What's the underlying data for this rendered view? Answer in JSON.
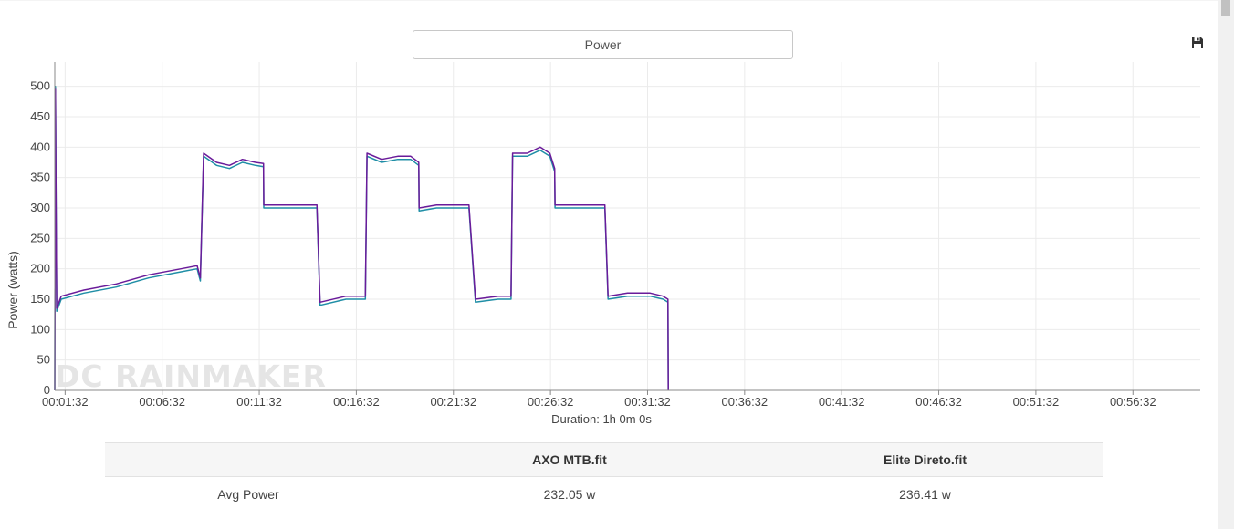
{
  "metric_selector": {
    "value": "Power"
  },
  "icons": {
    "save": "floppy-disk-icon"
  },
  "watermark": "DC RAINMAKER",
  "colors": {
    "series_a": "#1f8ea6",
    "series_b": "#6a1b9a",
    "grid": "#ebebeb",
    "axis": "#888888"
  },
  "chart_data": {
    "type": "line",
    "title": "",
    "xlabel": "Duration: 1h 0m 0s",
    "ylabel": "Power (watts)",
    "ylim": [
      0,
      540
    ],
    "xlim_seconds": [
      60,
      3600
    ],
    "y_ticks": [
      0,
      50,
      100,
      150,
      200,
      250,
      300,
      350,
      400,
      450,
      500
    ],
    "x_ticks": [
      {
        "t": 92,
        "label": "00:01:32"
      },
      {
        "t": 392,
        "label": "00:06:32"
      },
      {
        "t": 692,
        "label": "00:11:32"
      },
      {
        "t": 992,
        "label": "00:16:32"
      },
      {
        "t": 1292,
        "label": "00:21:32"
      },
      {
        "t": 1592,
        "label": "00:26:32"
      },
      {
        "t": 1892,
        "label": "00:31:32"
      },
      {
        "t": 2192,
        "label": "00:36:32"
      },
      {
        "t": 2492,
        "label": "00:41:32"
      },
      {
        "t": 2792,
        "label": "00:46:32"
      },
      {
        "t": 3092,
        "label": "00:51:32"
      },
      {
        "t": 3392,
        "label": "00:56:32"
      }
    ],
    "grid": true,
    "legend": "none",
    "series": [
      {
        "name": "AXO MTB.fit",
        "points": [
          [
            60,
            0
          ],
          [
            62,
            500
          ],
          [
            64,
            300
          ],
          [
            66,
            130
          ],
          [
            80,
            150
          ],
          [
            150,
            160
          ],
          [
            250,
            170
          ],
          [
            350,
            185
          ],
          [
            450,
            195
          ],
          [
            500,
            200
          ],
          [
            510,
            180
          ],
          [
            520,
            385
          ],
          [
            560,
            370
          ],
          [
            600,
            365
          ],
          [
            640,
            375
          ],
          [
            680,
            370
          ],
          [
            705,
            368
          ],
          [
            706,
            300
          ],
          [
            760,
            300
          ],
          [
            820,
            300
          ],
          [
            870,
            300
          ],
          [
            880,
            140
          ],
          [
            960,
            150
          ],
          [
            1020,
            150
          ],
          [
            1025,
            385
          ],
          [
            1070,
            375
          ],
          [
            1120,
            380
          ],
          [
            1160,
            380
          ],
          [
            1185,
            370
          ],
          [
            1186,
            295
          ],
          [
            1240,
            300
          ],
          [
            1300,
            300
          ],
          [
            1340,
            300
          ],
          [
            1360,
            145
          ],
          [
            1430,
            150
          ],
          [
            1470,
            150
          ],
          [
            1475,
            385
          ],
          [
            1520,
            385
          ],
          [
            1560,
            395
          ],
          [
            1590,
            385
          ],
          [
            1605,
            360
          ],
          [
            1606,
            300
          ],
          [
            1660,
            300
          ],
          [
            1720,
            300
          ],
          [
            1760,
            300
          ],
          [
            1770,
            150
          ],
          [
            1830,
            155
          ],
          [
            1900,
            155
          ],
          [
            1940,
            150
          ],
          [
            1955,
            145
          ],
          [
            1956,
            0
          ]
        ]
      },
      {
        "name": "Elite Direto.fit",
        "points": [
          [
            60,
            0
          ],
          [
            62,
            495
          ],
          [
            64,
            305
          ],
          [
            66,
            135
          ],
          [
            80,
            155
          ],
          [
            150,
            165
          ],
          [
            250,
            175
          ],
          [
            350,
            190
          ],
          [
            450,
            200
          ],
          [
            500,
            205
          ],
          [
            510,
            185
          ],
          [
            520,
            390
          ],
          [
            560,
            375
          ],
          [
            600,
            370
          ],
          [
            640,
            380
          ],
          [
            680,
            375
          ],
          [
            705,
            373
          ],
          [
            706,
            305
          ],
          [
            760,
            305
          ],
          [
            820,
            305
          ],
          [
            870,
            305
          ],
          [
            880,
            145
          ],
          [
            960,
            155
          ],
          [
            1020,
            155
          ],
          [
            1025,
            390
          ],
          [
            1070,
            380
          ],
          [
            1120,
            385
          ],
          [
            1160,
            385
          ],
          [
            1185,
            375
          ],
          [
            1186,
            300
          ],
          [
            1240,
            305
          ],
          [
            1300,
            305
          ],
          [
            1340,
            305
          ],
          [
            1360,
            150
          ],
          [
            1430,
            155
          ],
          [
            1470,
            155
          ],
          [
            1475,
            390
          ],
          [
            1520,
            390
          ],
          [
            1560,
            400
          ],
          [
            1590,
            390
          ],
          [
            1605,
            365
          ],
          [
            1606,
            305
          ],
          [
            1660,
            305
          ],
          [
            1720,
            305
          ],
          [
            1760,
            305
          ],
          [
            1770,
            155
          ],
          [
            1830,
            160
          ],
          [
            1900,
            160
          ],
          [
            1940,
            155
          ],
          [
            1955,
            150
          ],
          [
            1956,
            0
          ]
        ]
      }
    ]
  },
  "stats_table": {
    "headers": [
      "",
      "AXO MTB.fit",
      "Elite Direto.fit"
    ],
    "rows": [
      {
        "label": "Avg Power",
        "a": "232.05 w",
        "b": "236.41 w"
      }
    ]
  }
}
